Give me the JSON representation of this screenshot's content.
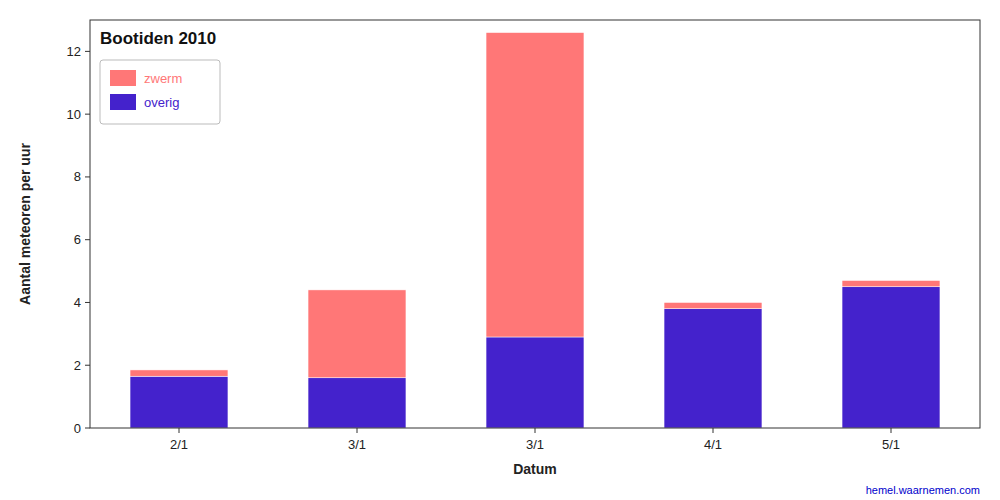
{
  "chart_data": {
    "type": "bar",
    "title": "Bootiden 2010",
    "categories": [
      "2/1",
      "3/1",
      "3/1",
      "4/1",
      "5/1"
    ],
    "series": [
      {
        "name": "overig",
        "color": "#4422CC",
        "values": [
          1.65,
          1.6,
          2.9,
          3.8,
          4.5
        ]
      },
      {
        "name": "zwerm",
        "color": "#FF7777",
        "values": [
          0.2,
          2.8,
          9.7,
          0.2,
          0.2
        ]
      }
    ],
    "stacked": true,
    "xlabel": "Datum",
    "ylabel": "Aantal meteoren per uur",
    "ylim": [
      0,
      13
    ],
    "yticks": [
      0,
      2,
      4,
      6,
      8,
      10,
      12
    ],
    "grid": false,
    "legend": "upper left",
    "annotations": [
      "hemel.waarnemen.com"
    ]
  }
}
